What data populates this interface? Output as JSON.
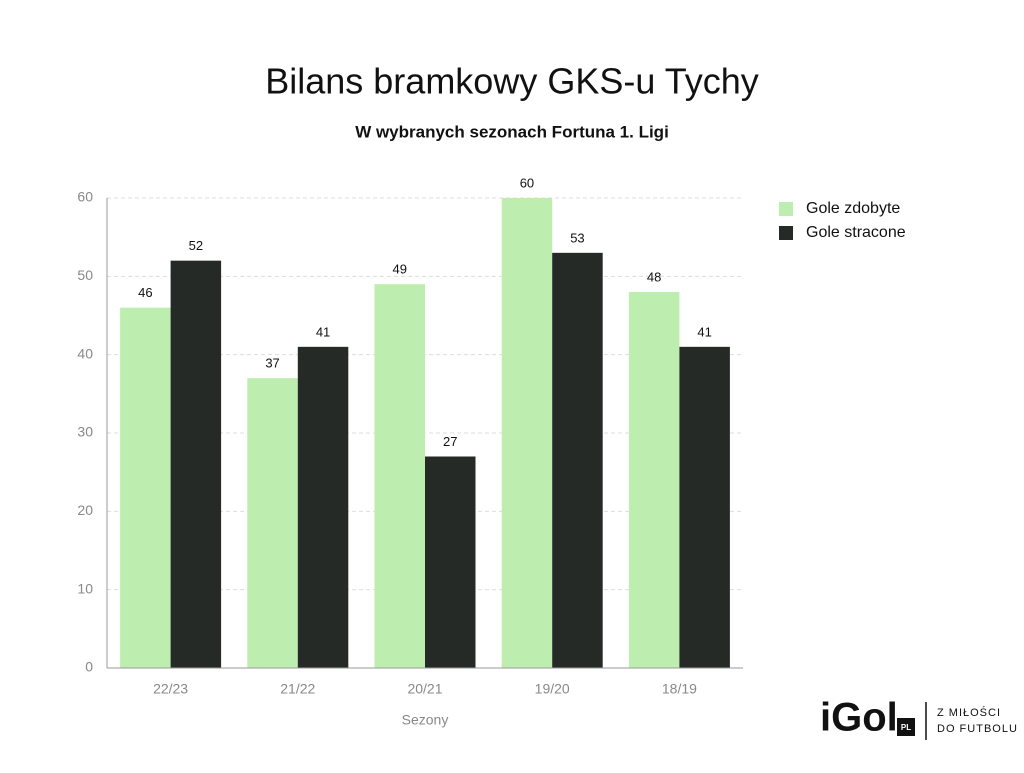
{
  "chart_data": {
    "type": "bar",
    "title": "Bilans bramkowy GKS-u Tychy",
    "subtitle": "W wybranych sezonach Fortuna 1. Ligi",
    "x_label": "Sezony",
    "categories": [
      "22/23",
      "21/22",
      "20/21",
      "19/20",
      "18/19"
    ],
    "series": [
      {
        "name": "Gole zdobyte",
        "color": "#bdeeb0",
        "values": [
          46,
          37,
          49,
          60,
          48
        ]
      },
      {
        "name": "Gole stracone",
        "color": "#262a26",
        "values": [
          52,
          41,
          27,
          53,
          41
        ]
      }
    ],
    "ylim": [
      0,
      60
    ],
    "yticks": [
      0,
      10,
      20,
      30,
      40,
      50,
      60
    ],
    "grid": true,
    "legend": "right"
  },
  "logo": {
    "brand": "iGol",
    "badge": "PL",
    "tagline": [
      "Z MIŁOŚCI",
      "DO FUTBOLU"
    ]
  }
}
